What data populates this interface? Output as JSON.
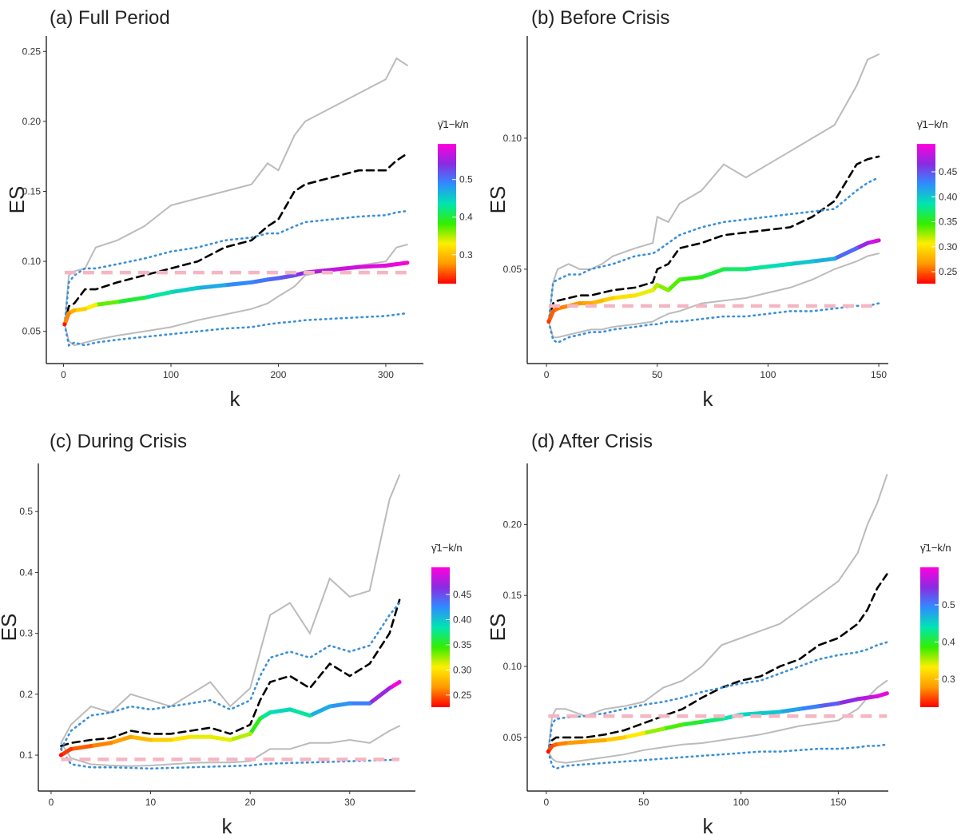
{
  "chart_data": [
    {
      "type": "line",
      "title": "(a) Full Period",
      "xlabel": "k",
      "ylabel": "ES",
      "xlim": [
        -16,
        335
      ],
      "ylim": [
        0.027,
        0.261
      ],
      "xticks": [
        0,
        100,
        200,
        300
      ],
      "yticks": [
        0.05,
        {
          "value": 0.1,
          "label": "0.10"
        },
        0.15,
        {
          "value": 0.2,
          "label": "0.20"
        },
        0.25
      ],
      "x": [
        1,
        5,
        10,
        20,
        30,
        50,
        75,
        100,
        125,
        150,
        175,
        190,
        200,
        215,
        225,
        250,
        275,
        300,
        310,
        320
      ],
      "series": [
        {
          "color": "#bbbbbb",
          "style": "solid",
          "values": [
            0.055,
            0.09,
            0.093,
            0.095,
            0.11,
            0.115,
            0.125,
            0.14,
            0.145,
            0.15,
            0.155,
            0.17,
            0.165,
            0.19,
            0.2,
            0.21,
            0.22,
            0.23,
            0.245,
            0.24
          ]
        },
        {
          "color": "#bbbbbb",
          "style": "solid",
          "values": [
            0.055,
            0.043,
            0.04,
            0.042,
            0.044,
            0.047,
            0.05,
            0.053,
            0.058,
            0.062,
            0.066,
            0.07,
            0.075,
            0.082,
            0.09,
            0.094,
            0.097,
            0.1,
            0.11,
            0.112
          ]
        },
        {
          "color": "#000000",
          "style": "dashed",
          "values": [
            0.055,
            0.068,
            0.07,
            0.08,
            0.08,
            0.085,
            0.09,
            0.095,
            0.1,
            0.11,
            0.115,
            0.125,
            0.13,
            0.15,
            0.155,
            0.16,
            0.165,
            0.165,
            0.172,
            0.177
          ]
        },
        {
          "color": "#3a8fd9",
          "style": "dotted",
          "values": [
            0.055,
            0.085,
            0.09,
            0.095,
            0.095,
            0.098,
            0.102,
            0.107,
            0.11,
            0.115,
            0.117,
            0.12,
            0.12,
            0.125,
            0.128,
            0.13,
            0.132,
            0.133,
            0.135,
            0.136
          ]
        },
        {
          "color": "#3a8fd9",
          "style": "dotted",
          "values": [
            0.055,
            0.04,
            0.042,
            0.04,
            0.042,
            0.044,
            0.046,
            0.048,
            0.05,
            0.052,
            0.053,
            0.055,
            0.056,
            0.057,
            0.058,
            0.059,
            0.06,
            0.061,
            0.062,
            0.063
          ]
        },
        {
          "style": "gradient",
          "values": [
            0.055,
            0.063,
            0.065,
            0.066,
            0.069,
            0.071,
            0.074,
            0.078,
            0.081,
            0.083,
            0.085,
            0.087,
            0.088,
            0.09,
            0.092,
            0.094,
            0.096,
            0.097,
            0.098,
            0.099
          ],
          "gamma": [
            0.23,
            0.27,
            0.29,
            0.31,
            0.33,
            0.37,
            0.4,
            0.43,
            0.45,
            0.47,
            0.49,
            0.5,
            0.51,
            0.52,
            0.54,
            0.56,
            0.57,
            0.58,
            0.585,
            0.59
          ]
        }
      ],
      "reference_line": {
        "value": 0.092,
        "color": "#f4b6c2"
      },
      "colorbar_title": "γ̄1−k/n",
      "colorbar_lim": [
        0.223,
        0.595
      ],
      "colorbar_ticks": [
        0.3,
        0.4,
        0.5
      ],
      "colorscale": [
        "#ff0000",
        "#ff9900",
        "#ffee00",
        "#33ee00",
        "#00e5b0",
        "#2f8cff",
        "#8a2be2",
        "#ff00dd"
      ]
    },
    {
      "type": "line",
      "title": "(b) Before Crisis",
      "xlabel": "k",
      "ylabel": "ES",
      "xlim": [
        -8.7,
        154.3
      ],
      "ylim": [
        0.014,
        0.139
      ],
      "xticks": [
        0,
        50,
        100,
        150
      ],
      "yticks": [
        0.05,
        {
          "value": 0.1,
          "label": "0.10"
        }
      ],
      "x": [
        1,
        3,
        5,
        10,
        15,
        20,
        25,
        30,
        40,
        48,
        50,
        55,
        60,
        70,
        80,
        90,
        100,
        110,
        120,
        130,
        140,
        145,
        150
      ],
      "series": [
        {
          "color": "#bbbbbb",
          "style": "solid",
          "values": [
            0.03,
            0.045,
            0.05,
            0.052,
            0.05,
            0.05,
            0.052,
            0.055,
            0.058,
            0.06,
            0.07,
            0.068,
            0.075,
            0.08,
            0.09,
            0.085,
            0.09,
            0.095,
            0.1,
            0.105,
            0.12,
            0.13,
            0.132
          ]
        },
        {
          "color": "#bbbbbb",
          "style": "solid",
          "values": [
            0.03,
            0.024,
            0.024,
            0.025,
            0.026,
            0.027,
            0.027,
            0.028,
            0.029,
            0.03,
            0.031,
            0.033,
            0.034,
            0.037,
            0.038,
            0.039,
            0.041,
            0.043,
            0.046,
            0.05,
            0.053,
            0.055,
            0.056
          ]
        },
        {
          "color": "#000000",
          "style": "dashed",
          "values": [
            0.03,
            0.037,
            0.038,
            0.039,
            0.04,
            0.04,
            0.041,
            0.042,
            0.043,
            0.045,
            0.05,
            0.052,
            0.058,
            0.06,
            0.063,
            0.064,
            0.065,
            0.066,
            0.07,
            0.076,
            0.09,
            0.092,
            0.093
          ]
        },
        {
          "color": "#3a8fd9",
          "style": "dotted",
          "values": [
            0.03,
            0.045,
            0.046,
            0.048,
            0.048,
            0.05,
            0.051,
            0.052,
            0.055,
            0.056,
            0.057,
            0.06,
            0.063,
            0.066,
            0.068,
            0.069,
            0.07,
            0.071,
            0.072,
            0.073,
            0.08,
            0.083,
            0.085
          ]
        },
        {
          "color": "#3a8fd9",
          "style": "dotted",
          "values": [
            0.03,
            0.023,
            0.022,
            0.024,
            0.025,
            0.026,
            0.026,
            0.027,
            0.028,
            0.029,
            0.029,
            0.03,
            0.03,
            0.031,
            0.032,
            0.032,
            0.033,
            0.034,
            0.034,
            0.035,
            0.036,
            0.036,
            0.037
          ]
        },
        {
          "style": "gradient",
          "values": [
            0.03,
            0.034,
            0.035,
            0.036,
            0.037,
            0.037,
            0.038,
            0.039,
            0.04,
            0.042,
            0.044,
            0.042,
            0.046,
            0.047,
            0.05,
            0.05,
            0.051,
            0.052,
            0.053,
            0.054,
            0.058,
            0.06,
            0.061
          ],
          "gamma": [
            0.24,
            0.25,
            0.255,
            0.26,
            0.265,
            0.27,
            0.28,
            0.29,
            0.3,
            0.31,
            0.32,
            0.33,
            0.34,
            0.35,
            0.36,
            0.37,
            0.38,
            0.39,
            0.4,
            0.41,
            0.44,
            0.47,
            0.49
          ]
        }
      ],
      "reference_line": {
        "value": 0.036,
        "color": "#f4b6c2"
      },
      "colorbar_title": "γ̄1−k/n",
      "colorbar_lim": [
        0.226,
        0.506
      ],
      "colorbar_ticks": [
        0.25,
        {
          "value": 0.3,
          "label": "0.30"
        },
        0.35,
        {
          "value": 0.4,
          "label": "0.40"
        },
        0.45
      ],
      "colorscale": [
        "#ff0000",
        "#ff9900",
        "#ffee00",
        "#33ee00",
        "#00e5b0",
        "#2f8cff",
        "#8a2be2",
        "#ff00dd"
      ]
    },
    {
      "type": "line",
      "title": "(c) During Crisis",
      "xlabel": "k",
      "ylabel": "ES",
      "xlim": [
        -1.28,
        36.6
      ],
      "ylim": [
        0.041,
        0.579
      ],
      "xticks": [
        0,
        10,
        20,
        30
      ],
      "yticks": [
        0.1,
        0.2,
        0.3,
        0.4,
        0.5
      ],
      "x": [
        1,
        2,
        4,
        6,
        8,
        10,
        12,
        14,
        16,
        18,
        20,
        21,
        22,
        24,
        26,
        28,
        30,
        32,
        34,
        35
      ],
      "series": [
        {
          "color": "#bbbbbb",
          "style": "solid",
          "values": [
            0.12,
            0.15,
            0.18,
            0.17,
            0.2,
            0.19,
            0.18,
            0.2,
            0.22,
            0.18,
            0.21,
            0.27,
            0.33,
            0.35,
            0.3,
            0.39,
            0.36,
            0.37,
            0.52,
            0.56
          ]
        },
        {
          "color": "#bbbbbb",
          "style": "solid",
          "values": [
            0.12,
            0.095,
            0.085,
            0.083,
            0.082,
            0.083,
            0.085,
            0.087,
            0.088,
            0.088,
            0.09,
            0.1,
            0.11,
            0.11,
            0.12,
            0.12,
            0.125,
            0.12,
            0.14,
            0.148
          ]
        },
        {
          "color": "#000000",
          "style": "dashed",
          "values": [
            0.115,
            0.12,
            0.125,
            0.128,
            0.14,
            0.135,
            0.135,
            0.14,
            0.145,
            0.135,
            0.15,
            0.19,
            0.22,
            0.23,
            0.21,
            0.25,
            0.23,
            0.25,
            0.3,
            0.355
          ]
        },
        {
          "color": "#3a8fd9",
          "style": "dotted",
          "values": [
            0.11,
            0.14,
            0.165,
            0.17,
            0.18,
            0.175,
            0.18,
            0.185,
            0.19,
            0.175,
            0.19,
            0.23,
            0.26,
            0.27,
            0.26,
            0.28,
            0.27,
            0.28,
            0.33,
            0.35
          ]
        },
        {
          "color": "#3a8fd9",
          "style": "dotted",
          "values": [
            0.11,
            0.085,
            0.08,
            0.08,
            0.079,
            0.078,
            0.079,
            0.08,
            0.081,
            0.082,
            0.083,
            0.085,
            0.086,
            0.087,
            0.088,
            0.089,
            0.09,
            0.091,
            0.092,
            0.093
          ]
        },
        {
          "style": "gradient",
          "values": [
            0.1,
            0.11,
            0.115,
            0.12,
            0.13,
            0.125,
            0.125,
            0.13,
            0.13,
            0.125,
            0.135,
            0.16,
            0.17,
            0.175,
            0.165,
            0.18,
            0.185,
            0.185,
            0.21,
            0.22
          ],
          "gamma": [
            0.23,
            0.24,
            0.25,
            0.26,
            0.27,
            0.28,
            0.29,
            0.3,
            0.31,
            0.31,
            0.32,
            0.35,
            0.38,
            0.39,
            0.38,
            0.41,
            0.42,
            0.43,
            0.47,
            0.5
          ]
        }
      ],
      "reference_line": {
        "value": 0.093,
        "color": "#f4b6c2"
      },
      "colorbar_title": "γ̄1−k/n",
      "colorbar_lim": [
        0.226,
        0.504
      ],
      "colorbar_ticks": [
        0.25,
        {
          "value": 0.3,
          "label": "0.30"
        },
        0.35,
        {
          "value": 0.4,
          "label": "0.40"
        },
        0.45
      ],
      "colorscale": [
        "#ff0000",
        "#ff9900",
        "#ffee00",
        "#33ee00",
        "#00e5b0",
        "#2f8cff",
        "#8a2be2",
        "#ff00dd"
      ]
    },
    {
      "type": "line",
      "title": "(d) After Crisis",
      "xlabel": "k",
      "ylabel": "ES",
      "xlim": [
        -9.8,
        175.7
      ],
      "ylim": [
        0.0122,
        0.243
      ],
      "xticks": [
        0,
        50,
        100,
        150
      ],
      "yticks": [
        0.05,
        {
          "value": 0.1,
          "label": "0.10"
        },
        0.15,
        {
          "value": 0.2,
          "label": "0.20"
        }
      ],
      "x": [
        1,
        3,
        5,
        10,
        20,
        30,
        40,
        50,
        60,
        70,
        80,
        90,
        100,
        110,
        120,
        130,
        140,
        150,
        160,
        165,
        170,
        175
      ],
      "series": [
        {
          "color": "#bbbbbb",
          "style": "solid",
          "values": [
            0.04,
            0.065,
            0.07,
            0.07,
            0.065,
            0.07,
            0.072,
            0.075,
            0.085,
            0.09,
            0.1,
            0.115,
            0.12,
            0.125,
            0.13,
            0.14,
            0.15,
            0.16,
            0.18,
            0.2,
            0.215,
            0.235
          ]
        },
        {
          "color": "#bbbbbb",
          "style": "solid",
          "values": [
            0.04,
            0.035,
            0.033,
            0.032,
            0.034,
            0.036,
            0.038,
            0.041,
            0.043,
            0.045,
            0.046,
            0.048,
            0.05,
            0.052,
            0.055,
            0.058,
            0.06,
            0.062,
            0.07,
            0.078,
            0.085,
            0.09
          ]
        },
        {
          "color": "#000000",
          "style": "dashed",
          "values": [
            0.04,
            0.048,
            0.05,
            0.05,
            0.05,
            0.052,
            0.055,
            0.06,
            0.065,
            0.07,
            0.078,
            0.085,
            0.09,
            0.093,
            0.1,
            0.105,
            0.115,
            0.12,
            0.13,
            0.14,
            0.155,
            0.165
          ]
        },
        {
          "color": "#3a8fd9",
          "style": "dotted",
          "values": [
            0.04,
            0.06,
            0.063,
            0.064,
            0.065,
            0.067,
            0.07,
            0.073,
            0.075,
            0.078,
            0.082,
            0.085,
            0.088,
            0.09,
            0.095,
            0.1,
            0.105,
            0.108,
            0.11,
            0.112,
            0.115,
            0.117
          ]
        },
        {
          "color": "#3a8fd9",
          "style": "dotted",
          "values": [
            0.04,
            0.03,
            0.028,
            0.03,
            0.031,
            0.032,
            0.033,
            0.034,
            0.035,
            0.036,
            0.037,
            0.038,
            0.039,
            0.04,
            0.04,
            0.041,
            0.042,
            0.042,
            0.043,
            0.044,
            0.044,
            0.045
          ]
        },
        {
          "style": "gradient",
          "values": [
            0.04,
            0.044,
            0.045,
            0.046,
            0.047,
            0.048,
            0.05,
            0.053,
            0.056,
            0.059,
            0.061,
            0.063,
            0.066,
            0.067,
            0.068,
            0.07,
            0.072,
            0.074,
            0.077,
            0.078,
            0.079,
            0.081
          ],
          "gamma": [
            0.23,
            0.25,
            0.26,
            0.27,
            0.28,
            0.29,
            0.31,
            0.33,
            0.36,
            0.38,
            0.4,
            0.42,
            0.44,
            0.45,
            0.46,
            0.48,
            0.5,
            0.52,
            0.55,
            0.57,
            0.58,
            0.59
          ]
        }
      ],
      "reference_line": {
        "value": 0.065,
        "color": "#f4b6c2"
      },
      "colorbar_title": "γ̄1−k/n",
      "colorbar_lim": [
        0.225,
        0.601
      ],
      "colorbar_ticks": [
        0.3,
        0.4,
        0.5
      ],
      "colorscale": [
        "#ff0000",
        "#ff9900",
        "#ffee00",
        "#33ee00",
        "#00e5b0",
        "#2f8cff",
        "#8a2be2",
        "#ff00dd"
      ]
    }
  ]
}
